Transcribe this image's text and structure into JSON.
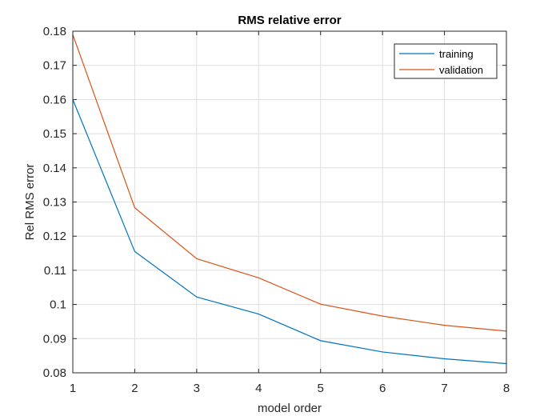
{
  "chart_data": {
    "type": "line",
    "title": "RMS relative error",
    "xlabel": "model order",
    "ylabel": "Rel RMS error",
    "xlim": [
      1,
      8
    ],
    "ylim": [
      0.08,
      0.18
    ],
    "x": [
      1,
      2,
      3,
      4,
      5,
      6,
      7,
      8
    ],
    "xticks": [
      "1",
      "2",
      "3",
      "4",
      "5",
      "6",
      "7",
      "8"
    ],
    "yticks": [
      "0.08",
      "0.09",
      "0.1",
      "0.11",
      "0.12",
      "0.13",
      "0.14",
      "0.15",
      "0.16",
      "0.17",
      "0.18"
    ],
    "grid": true,
    "legend_position": "top-right",
    "series": [
      {
        "name": "training",
        "color": "#0072bd",
        "values": [
          0.16,
          0.1155,
          0.1022,
          0.0972,
          0.0894,
          0.0861,
          0.0841,
          0.0827
        ]
      },
      {
        "name": "validation",
        "color": "#d95319",
        "values": [
          0.179,
          0.1283,
          0.1134,
          0.1078,
          0.1001,
          0.0966,
          0.0939,
          0.0922
        ]
      }
    ]
  }
}
